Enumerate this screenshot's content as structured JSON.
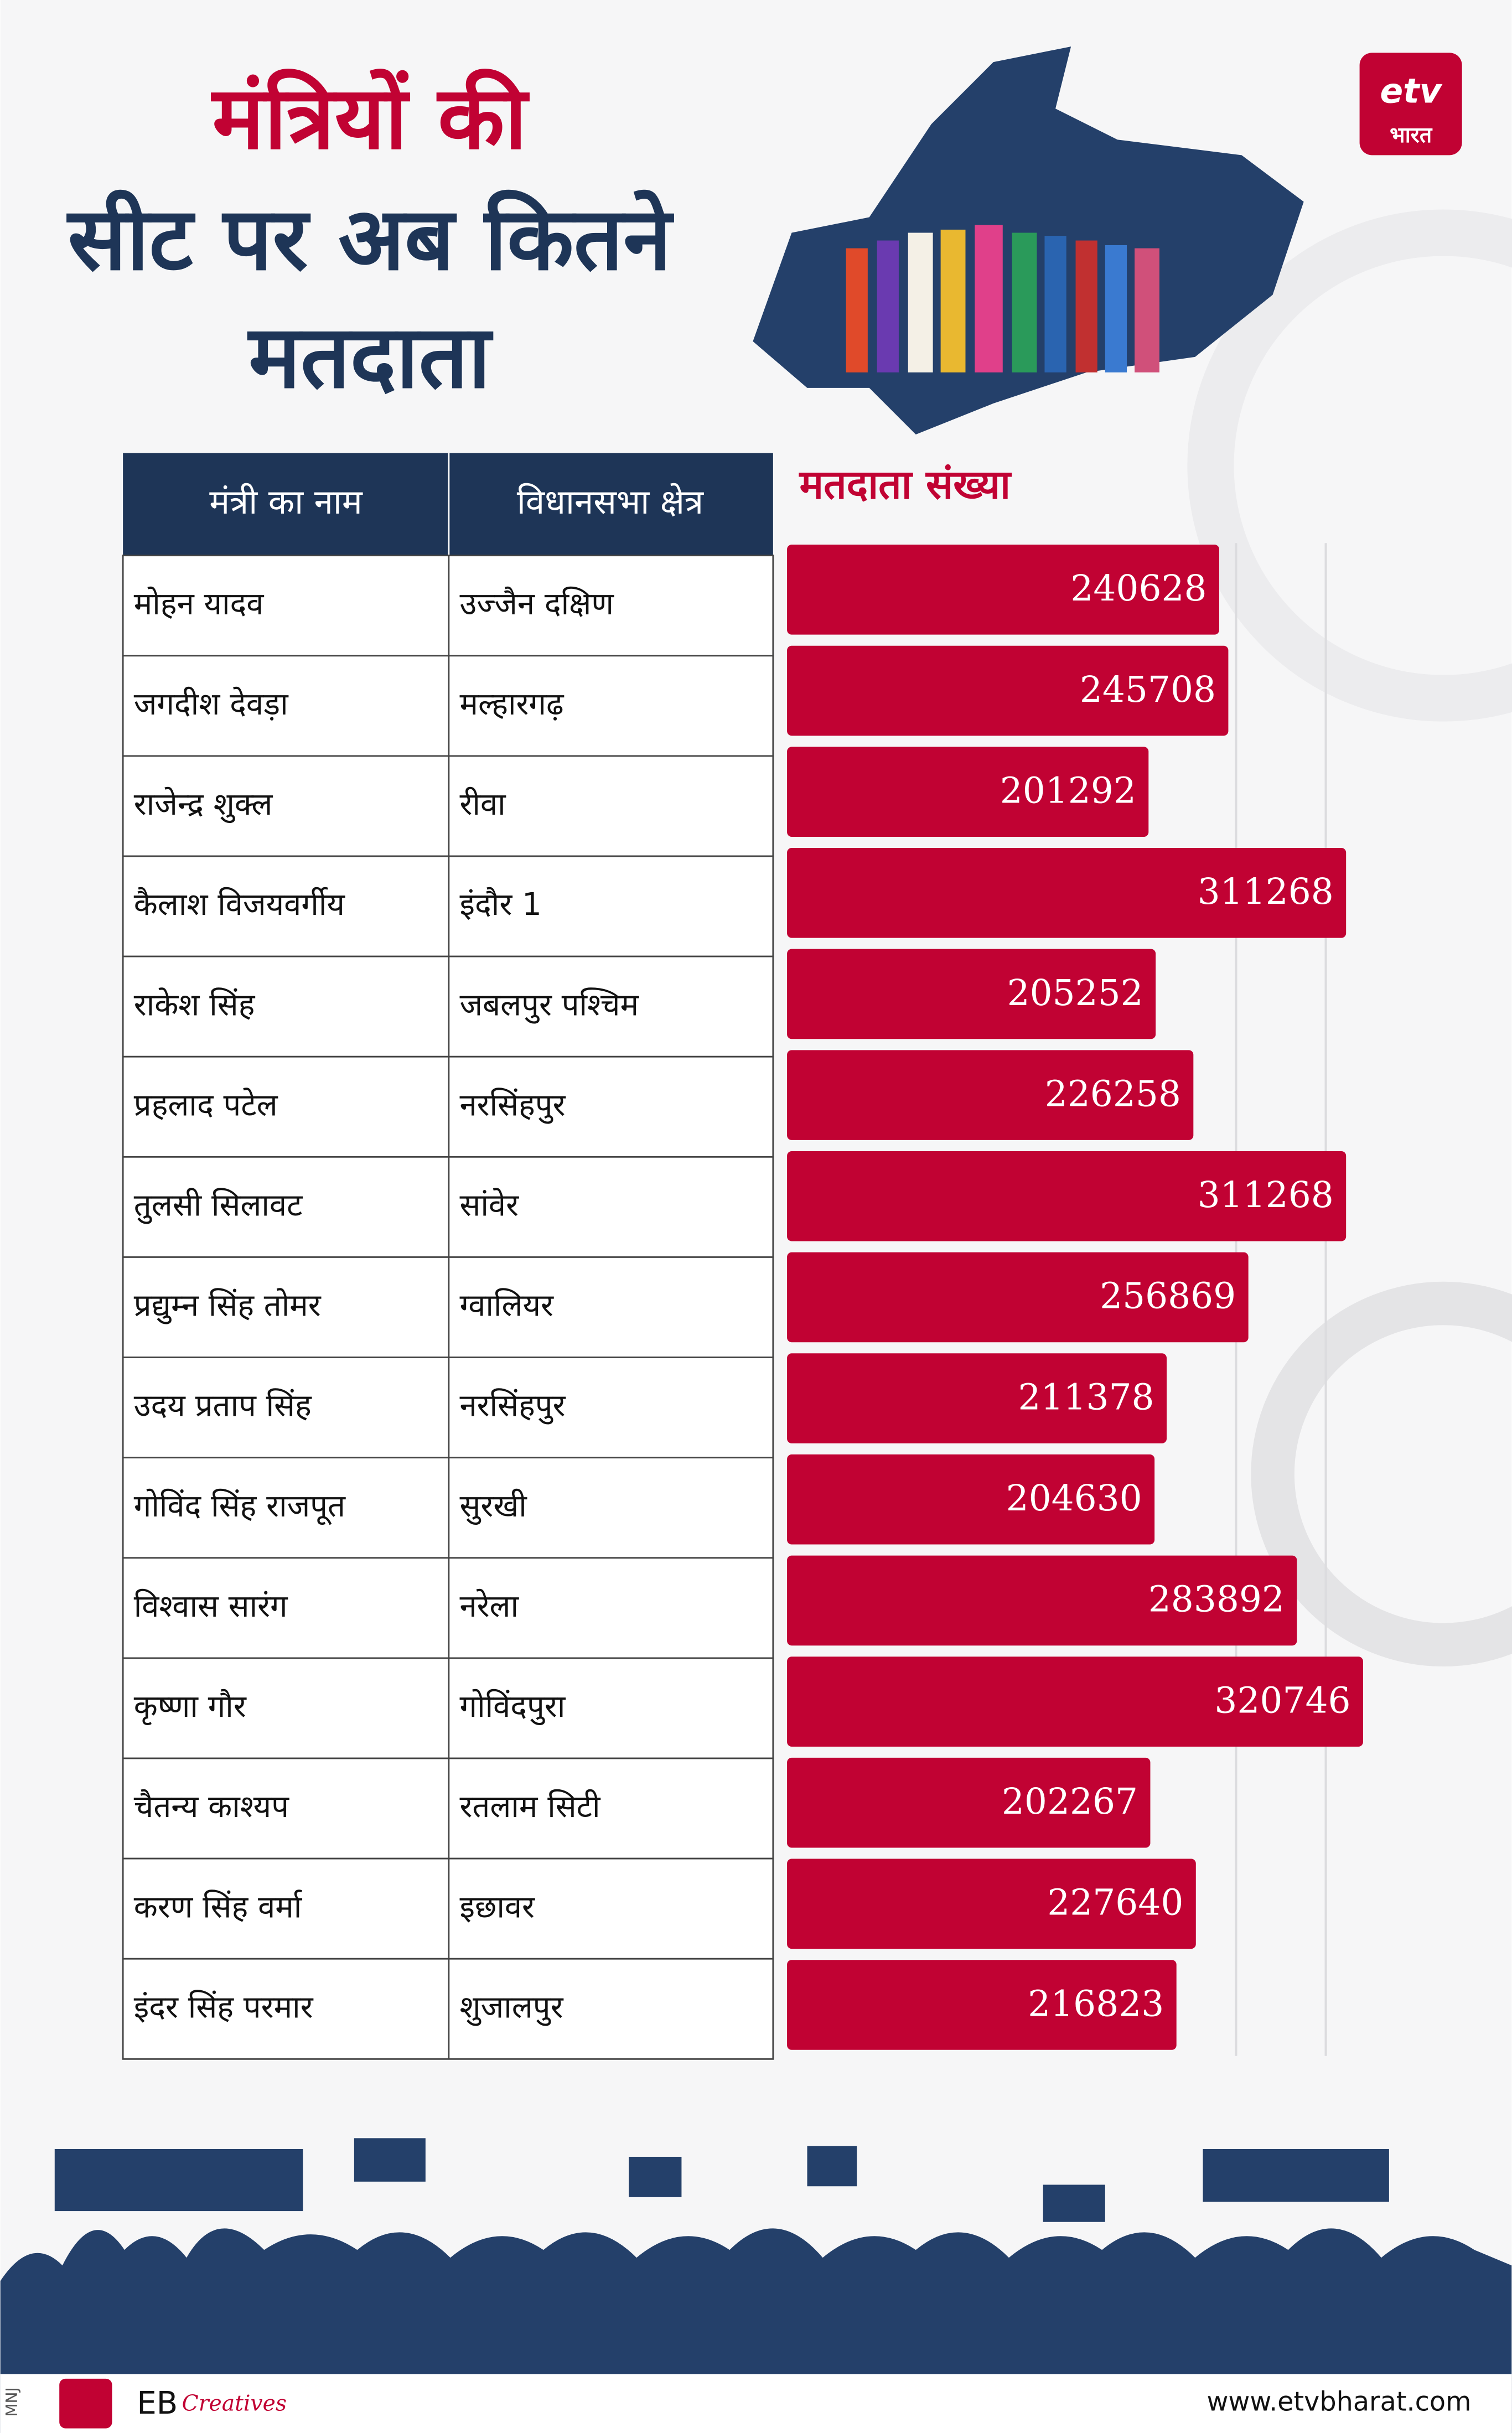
{
  "header": {
    "title_lines": [
      "मंत्रियों की",
      "सीट पर अब कितने",
      "मतदाता"
    ],
    "logo_text": "भारत"
  },
  "table": {
    "columns": [
      "मंत्री का नाम",
      "विधानसभा क्षेत्र"
    ],
    "rows": [
      [
        "मोहन यादव",
        "उज्जैन दक्षिण"
      ],
      [
        "जगदीश देवड़ा",
        "मल्हारगढ़"
      ],
      [
        "राजेन्द्र शुक्ल",
        "रीवा"
      ],
      [
        "कैलाश विजयवर्गीय",
        "इंदौर 1"
      ],
      [
        "राकेश सिंह",
        "जबलपुर पश्चिम"
      ],
      [
        "प्रहलाद पटेल",
        "नरसिंहपुर"
      ],
      [
        "तुलसी सिलावट",
        "सांवेर"
      ],
      [
        "प्रद्युम्न सिंह तोमर",
        "ग्वालियर"
      ],
      [
        "उदय प्रताप सिंह",
        "नरसिंहपुर"
      ],
      [
        "गोविंद सिंह राजपूत",
        "सुरखी"
      ],
      [
        "विश्वास सारंग",
        "नरेला"
      ],
      [
        "कृष्णा गौर",
        "गोविंदपुरा"
      ],
      [
        "चैतन्य काश्यप",
        "रतलाम सिटी"
      ],
      [
        "करण सिंह वर्मा",
        "इछावर"
      ],
      [
        "इंदर सिंह परमार",
        "शुजालपुर"
      ]
    ]
  },
  "chart_data": {
    "type": "bar",
    "orientation": "horizontal",
    "title": "मतदाता संख्या",
    "color": "#c10233",
    "values": [
      240628,
      245708,
      201292,
      311268,
      205252,
      226258,
      311268,
      256869,
      211378,
      204630,
      283892,
      320746,
      202267,
      227640,
      216823
    ],
    "xlim": [
      0,
      400000
    ],
    "xticks": [
      250000,
      300000
    ],
    "grid": true
  },
  "footer": {
    "initials": "MNJ",
    "brand": "EB",
    "brand_sub": "Creatives",
    "url": "www.etvbharat.com"
  }
}
